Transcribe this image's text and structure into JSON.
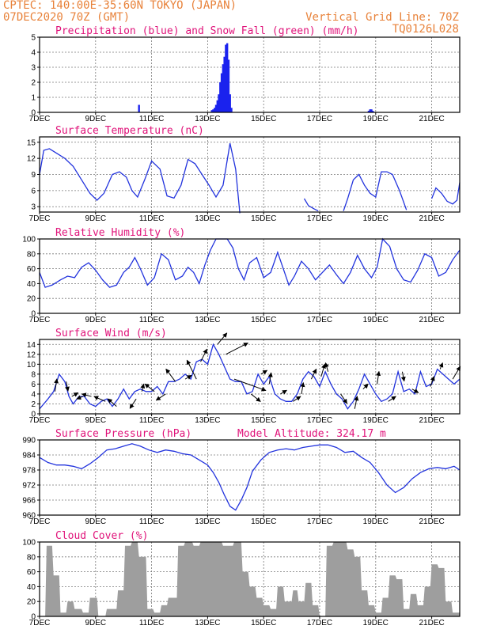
{
  "header": {
    "line1": "CPTEC:    140:00E-35:60N   TOKYO (JAPAN)",
    "line2": "07DEC2020 70Z (GMT)",
    "grid_note": "Vertical Grid Line: 70Z",
    "code": "TQ0126L028"
  },
  "colors": {
    "line": "#2233dd",
    "bar_precip": "#1a22ee",
    "bar_snow": "#22aa22",
    "cloud": "#9e9e9e",
    "title": "#e0137a",
    "header": "#e8823a",
    "arrow": "#000000"
  },
  "x_ticks": [
    "7DEC",
    "9DEC",
    "11DEC",
    "13DEC",
    "15DEC",
    "17DEC",
    "19DEC",
    "21DEC"
  ],
  "chart_data": [
    {
      "id": "precip",
      "type": "bar",
      "title": "Precipitation (blue) and Snow Fall (green) (mm/h)",
      "xlim": [
        0,
        15
      ],
      "ylim": [
        0,
        5
      ],
      "yticks": [
        0,
        1,
        2,
        3,
        4,
        5
      ],
      "series": [
        {
          "x": [
            3.55,
            6.15,
            6.2,
            6.25,
            6.3,
            6.35,
            6.4,
            6.45,
            6.5,
            6.55,
            6.6,
            6.65,
            6.7,
            6.75,
            6.8,
            6.85,
            11.75,
            11.8,
            11.85,
            11.9
          ],
          "values": [
            0.5,
            0.15,
            0.2,
            0.3,
            0.5,
            0.8,
            1.2,
            2.0,
            2.6,
            3.2,
            3.7,
            4.5,
            4.6,
            3.5,
            1.2,
            0.3,
            0.1,
            0.2,
            0.2,
            0.1
          ]
        }
      ]
    },
    {
      "id": "temp",
      "type": "line",
      "title": "Surface Temperature (nC)",
      "xlim": [
        0,
        15
      ],
      "ylim": [
        2,
        16
      ],
      "yticks": [
        3,
        6,
        9,
        12,
        15
      ],
      "series": [
        {
          "x": [
            0.0,
            0.15,
            0.35,
            0.6,
            0.9,
            1.2,
            1.5,
            1.8,
            2.05,
            2.3,
            2.6,
            2.85,
            3.1,
            3.3,
            3.5,
            3.75,
            4.0,
            4.3,
            4.55,
            4.8,
            5.05,
            5.3,
            5.55,
            5.8,
            6.05,
            6.3,
            6.55,
            6.8,
            7.0,
            7.15
          ],
          "values": [
            9,
            13.5,
            13.8,
            13,
            12,
            10.5,
            8,
            5.5,
            4.2,
            5.5,
            9,
            9.5,
            8.5,
            6,
            4.8,
            8,
            11.5,
            10,
            5,
            4.6,
            7,
            11.8,
            11,
            9,
            7,
            4.8,
            7,
            14.8,
            10,
            1.8
          ]
        },
        {
          "x": [
            9.45,
            9.6,
            9.8,
            9.95
          ],
          "values": [
            4.5,
            3.2,
            2.6,
            2.2
          ]
        },
        {
          "x": [
            10.85,
            11.0,
            11.2,
            11.4,
            11.6,
            11.8,
            12.0,
            12.2,
            12.4,
            12.6,
            12.85,
            13.1
          ],
          "values": [
            2.2,
            4.5,
            8,
            9,
            7,
            5.5,
            4.8,
            9.5,
            9.5,
            9,
            6,
            2.4
          ]
        },
        {
          "x": [
            14.0,
            14.15,
            14.35,
            14.55,
            14.75,
            14.9,
            15.0
          ],
          "values": [
            4.5,
            6.5,
            5.5,
            4,
            3.5,
            4.2,
            7.5
          ]
        }
      ]
    },
    {
      "id": "rh",
      "type": "line",
      "title": "Relative Humidity (%)",
      "xlim": [
        0,
        15
      ],
      "ylim": [
        0,
        100
      ],
      "yticks": [
        0,
        20,
        40,
        60,
        80,
        100
      ],
      "series": [
        {
          "x": [
            0.0,
            0.2,
            0.45,
            0.75,
            1.0,
            1.25,
            1.5,
            1.75,
            2.0,
            2.25,
            2.5,
            2.75,
            3.0,
            3.2,
            3.4,
            3.6,
            3.85,
            4.1,
            4.35,
            4.6,
            4.85,
            5.1,
            5.3,
            5.5,
            5.7,
            5.9,
            6.1,
            6.3,
            6.5,
            6.7,
            6.9,
            7.1,
            7.3,
            7.5,
            7.75,
            8.0,
            8.25,
            8.5,
            8.7,
            8.9,
            9.1,
            9.35,
            9.6,
            9.85,
            10.1,
            10.35,
            10.6,
            10.85,
            11.1,
            11.35,
            11.6,
            11.85,
            12.05,
            12.25,
            12.5,
            12.75,
            13.0,
            13.25,
            13.5,
            13.75,
            14.0,
            14.25,
            14.5,
            14.75,
            15.0
          ],
          "values": [
            55,
            35,
            38,
            45,
            50,
            48,
            62,
            68,
            58,
            45,
            35,
            38,
            55,
            62,
            75,
            60,
            38,
            48,
            80,
            72,
            45,
            50,
            62,
            55,
            40,
            65,
            85,
            100,
            100,
            100,
            88,
            60,
            45,
            68,
            75,
            48,
            55,
            82,
            60,
            38,
            50,
            70,
            60,
            45,
            55,
            65,
            52,
            40,
            55,
            78,
            60,
            48,
            62,
            100,
            90,
            60,
            45,
            42,
            58,
            80,
            75,
            50,
            55,
            72,
            85
          ]
        }
      ]
    },
    {
      "id": "wind",
      "type": "line",
      "title": "Surface Wind (m/s)",
      "xlim": [
        0,
        15
      ],
      "ylim": [
        0,
        15
      ],
      "yticks": [
        0,
        2,
        4,
        6,
        8,
        10,
        12,
        14
      ],
      "series": [
        {
          "x": [
            0.0,
            0.15,
            0.3,
            0.5,
            0.7,
            0.9,
            1.05,
            1.2,
            1.4,
            1.6,
            1.8,
            2.0,
            2.2,
            2.4,
            2.6,
            2.8,
            3.0,
            3.2,
            3.4,
            3.6,
            3.8,
            4.0,
            4.2,
            4.4,
            4.6,
            4.8,
            5.0,
            5.2,
            5.4,
            5.6,
            5.8,
            6.0,
            6.2,
            6.4,
            6.6,
            6.8,
            7.0,
            7.2,
            7.4,
            7.6,
            7.8,
            8.0,
            8.2,
            8.4,
            8.6,
            8.8,
            9.0,
            9.2,
            9.4,
            9.6,
            9.8,
            10.0,
            10.2,
            10.4,
            10.6,
            10.8,
            11.0,
            11.2,
            11.4,
            11.6,
            11.8,
            12.0,
            12.2,
            12.4,
            12.6,
            12.8,
            13.0,
            13.2,
            13.4,
            13.6,
            13.8,
            14.0,
            14.2,
            14.4,
            14.6,
            14.8,
            15.0
          ],
          "values": [
            1,
            2,
            3,
            4.5,
            8,
            6.5,
            3.5,
            2,
            3.5,
            3.5,
            2,
            1.5,
            2.5,
            3,
            1.5,
            3,
            5,
            3,
            4.5,
            5,
            4.5,
            4.5,
            5.5,
            4,
            6.5,
            6.5,
            7,
            8,
            7,
            10.5,
            11,
            10,
            14,
            12,
            9.5,
            7,
            6.5,
            6.5,
            4,
            4.5,
            8,
            6,
            7.5,
            4,
            3,
            2.5,
            2.5,
            4,
            7,
            8.5,
            7.5,
            5.5,
            8.5,
            6,
            4,
            3,
            1,
            2.5,
            5,
            8,
            6,
            4,
            2.5,
            3,
            4,
            8.5,
            4.5,
            5,
            4,
            8.5,
            5.5,
            6,
            9,
            8,
            7,
            6,
            7
          ]
        }
      ],
      "arrows": [
        {
          "x": 0.55,
          "u": 0.3,
          "v": 2.0
        },
        {
          "x": 0.95,
          "u": 0.3,
          "v": -1.5
        },
        {
          "x": 1.15,
          "u": 1.0,
          "v": 0.6
        },
        {
          "x": 1.55,
          "u": -1.0,
          "v": -0.4
        },
        {
          "x": 1.85,
          "u": -1.5,
          "v": 0.4
        },
        {
          "x": 2.35,
          "u": -1.8,
          "v": 0.8
        },
        {
          "x": 2.75,
          "u": -1.4,
          "v": 1.2
        },
        {
          "x": 3.45,
          "u": -1.0,
          "v": -1.5
        },
        {
          "x": 3.65,
          "u": 0.3,
          "v": 1.2
        },
        {
          "x": 4.1,
          "u": -1.5,
          "v": 1.2
        },
        {
          "x": 4.5,
          "u": -1.5,
          "v": -1.0
        },
        {
          "x": 4.85,
          "u": -1.5,
          "v": 2.0
        },
        {
          "x": 5.2,
          "u": 1.0,
          "v": 0.6
        },
        {
          "x": 5.6,
          "u": -1.5,
          "v": 3.0
        },
        {
          "x": 5.75,
          "u": 1.0,
          "v": 2.0
        },
        {
          "x": 6.35,
          "u": 1.5,
          "v": 1.8
        },
        {
          "x": 6.65,
          "u": 3.5,
          "v": 1.8
        },
        {
          "x": 6.95,
          "u": 5.0,
          "v": -1.8
        },
        {
          "x": 7.55,
          "u": 1.5,
          "v": -1.2
        },
        {
          "x": 7.9,
          "u": 1.0,
          "v": 0.6
        },
        {
          "x": 8.2,
          "u": 0.3,
          "v": 1.8
        },
        {
          "x": 8.6,
          "u": 1.0,
          "v": 0.6
        },
        {
          "x": 9.05,
          "u": 1.2,
          "v": 0.8
        },
        {
          "x": 9.35,
          "u": 0.3,
          "v": 1.8
        },
        {
          "x": 9.7,
          "u": 0.8,
          "v": 1.6
        },
        {
          "x": 10.05,
          "u": 0.6,
          "v": 2.0
        },
        {
          "x": 10.3,
          "u": -0.4,
          "v": 1.4
        },
        {
          "x": 10.75,
          "u": 1.0,
          "v": -1.5
        },
        {
          "x": 11.25,
          "u": 0.4,
          "v": 2.0
        },
        {
          "x": 11.55,
          "u": 0.8,
          "v": 0.8
        },
        {
          "x": 12.05,
          "u": 0.3,
          "v": 2.0
        },
        {
          "x": 12.45,
          "u": 1.2,
          "v": 0.8
        },
        {
          "x": 12.95,
          "u": 0.3,
          "v": -1.5
        },
        {
          "x": 13.3,
          "u": 1.0,
          "v": -0.6
        },
        {
          "x": 13.95,
          "u": 0.6,
          "v": 1.6
        },
        {
          "x": 14.3,
          "u": 0.4,
          "v": 1.0
        },
        {
          "x": 14.75,
          "u": 1.2,
          "v": 2.0
        }
      ]
    },
    {
      "id": "pres",
      "type": "line",
      "title": "Surface Pressure (hPa)",
      "annotation": "Model Altitude: 324.17 m",
      "xlim": [
        0,
        15
      ],
      "ylim": [
        960,
        990
      ],
      "yticks": [
        960,
        966,
        972,
        978,
        984,
        990
      ],
      "series": [
        {
          "x": [
            0.0,
            0.3,
            0.6,
            0.9,
            1.2,
            1.5,
            1.8,
            2.1,
            2.4,
            2.7,
            3.0,
            3.3,
            3.6,
            3.9,
            4.2,
            4.5,
            4.8,
            5.1,
            5.4,
            5.7,
            6.0,
            6.2,
            6.4,
            6.6,
            6.8,
            7.0,
            7.2,
            7.4,
            7.6,
            7.9,
            8.2,
            8.5,
            8.8,
            9.1,
            9.4,
            9.7,
            10.0,
            10.3,
            10.6,
            10.9,
            11.2,
            11.5,
            11.8,
            12.1,
            12.4,
            12.7,
            13.0,
            13.3,
            13.6,
            13.9,
            14.2,
            14.5,
            14.8,
            15.0
          ],
          "values": [
            983,
            981,
            980,
            980,
            979.5,
            978.5,
            980.5,
            983,
            986,
            986.5,
            987.5,
            988.5,
            987.5,
            986,
            985,
            986,
            985.5,
            984.5,
            984,
            982,
            980,
            977,
            973,
            968,
            963.5,
            962,
            966,
            971,
            977.5,
            982,
            985,
            986,
            986.5,
            986,
            987,
            987.5,
            988,
            988,
            987,
            985,
            985.5,
            983,
            981,
            977,
            972,
            969,
            971,
            974.5,
            977,
            978.5,
            979,
            978.5,
            979.5,
            978
          ]
        }
      ]
    },
    {
      "id": "cloud",
      "type": "area",
      "title": "Cloud Cover (%)",
      "xlim": [
        0,
        15
      ],
      "ylim": [
        0,
        100
      ],
      "yticks": [
        0,
        20,
        40,
        60,
        80,
        100
      ],
      "series": [
        {
          "x": [
            0.0,
            0.2,
            0.25,
            0.45,
            0.5,
            0.7,
            0.75,
            0.95,
            1.0,
            1.2,
            1.25,
            1.5,
            1.55,
            1.75,
            1.8,
            2.05,
            2.1,
            2.35,
            2.4,
            2.75,
            2.8,
            3.0,
            3.05,
            3.25,
            3.3,
            3.5,
            3.55,
            3.8,
            3.85,
            4.05,
            4.1,
            4.3,
            4.35,
            4.55,
            4.6,
            4.9,
            4.95,
            5.15,
            5.2,
            5.45,
            5.5,
            5.7,
            5.75,
            5.95,
            6.0,
            6.5,
            6.55,
            6.9,
            6.95,
            7.2,
            7.25,
            7.45,
            7.5,
            7.7,
            7.75,
            7.95,
            8.0,
            8.2,
            8.25,
            8.45,
            8.5,
            8.7,
            8.75,
            9.0,
            9.05,
            9.2,
            9.25,
            9.45,
            9.5,
            9.7,
            9.75,
            9.95,
            10.0,
            10.2,
            10.25,
            10.45,
            10.5,
            10.7,
            10.75,
            10.95,
            11.0,
            11.2,
            11.25,
            11.45,
            11.5,
            11.7,
            11.75,
            11.95,
            12.0,
            12.2,
            12.25,
            12.45,
            12.5,
            12.7,
            12.75,
            12.95,
            13.0,
            13.2,
            13.25,
            13.45,
            13.5,
            13.7,
            13.75,
            13.95,
            14.0,
            14.2,
            14.25,
            14.45,
            14.5,
            14.7,
            14.75,
            15.0
          ],
          "values": [
            0,
            0,
            95,
            95,
            55,
            55,
            5,
            5,
            20,
            20,
            10,
            10,
            5,
            5,
            25,
            25,
            0,
            0,
            10,
            10,
            35,
            35,
            95,
            95,
            100,
            100,
            80,
            80,
            10,
            10,
            5,
            5,
            15,
            15,
            25,
            25,
            95,
            95,
            100,
            100,
            95,
            95,
            100,
            100,
            100,
            100,
            95,
            95,
            100,
            100,
            60,
            60,
            40,
            40,
            25,
            25,
            15,
            15,
            10,
            10,
            40,
            40,
            20,
            20,
            35,
            35,
            20,
            20,
            45,
            45,
            15,
            15,
            0,
            0,
            95,
            95,
            100,
            100,
            100,
            100,
            90,
            90,
            80,
            80,
            35,
            35,
            15,
            15,
            5,
            5,
            25,
            25,
            55,
            55,
            50,
            50,
            10,
            10,
            30,
            30,
            15,
            15,
            40,
            40,
            70,
            70,
            65,
            65,
            20,
            20,
            5,
            5
          ]
        }
      ]
    }
  ]
}
